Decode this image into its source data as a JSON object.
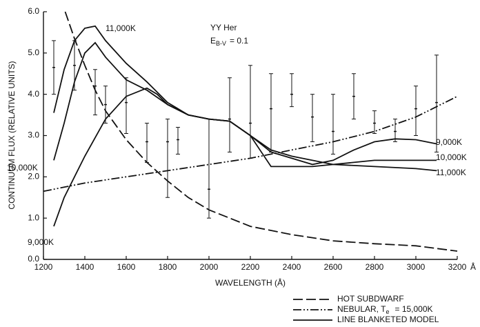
{
  "chart_data": {
    "type": "line",
    "xlabel": "WAVELENGTH (Å)",
    "ylabel": "CONTINUUM FLUX (RELATIVE UNITS)",
    "x_unit": "Å",
    "annotation_object": "YY Her",
    "annotation_excess": "E",
    "annotation_excess_subscript": "B-V",
    "annotation_excess_value": "= 0.1",
    "xlim": [
      1200,
      3200
    ],
    "ylim": [
      0,
      6
    ],
    "xticks": [
      1200,
      1400,
      1600,
      1800,
      2000,
      2200,
      2400,
      2600,
      2800,
      3000,
      3200
    ],
    "yticks": [
      {
        "value": 0,
        "label": "0.0"
      },
      {
        "value": 1,
        "label": "1.0"
      },
      {
        "value": 2,
        "label": "2.0"
      },
      {
        "value": 3,
        "label": "3.0"
      },
      {
        "value": 4,
        "label": "4.0"
      },
      {
        "value": 5,
        "label": "5.0"
      },
      {
        "value": 6,
        "label": "6.0"
      }
    ],
    "color": "#111111",
    "model_legend": "LINE BLANKETED MODEL",
    "observations": {
      "x": [
        1250,
        1350,
        1450,
        1500,
        1600,
        1700,
        1800,
        1850,
        2000,
        2100,
        2200,
        2300,
        2400,
        2500,
        2600,
        2700,
        2800,
        2900,
        3000,
        3100
      ],
      "values": [
        4.65,
        4.7,
        4.2,
        3.75,
        3.8,
        2.85,
        2.85,
        2.9,
        1.7,
        3.4,
        3.3,
        3.65,
        4.0,
        3.45,
        3.1,
        3.95,
        3.3,
        3.1,
        3.65,
        3.8
      ],
      "error_low": [
        0.65,
        0.6,
        0.7,
        0.45,
        0.75,
        0.5,
        1.35,
        0.35,
        0.7,
        0.8,
        0.85,
        1.05,
        0.3,
        0.6,
        0.55,
        0.55,
        0.25,
        0.25,
        0.65,
        1.2
      ],
      "error_high": [
        0.65,
        0.6,
        0.4,
        0.45,
        0.6,
        0.45,
        0.55,
        0.3,
        1.7,
        1.0,
        1.4,
        0.85,
        0.5,
        0.55,
        0.9,
        0.55,
        0.3,
        0.3,
        0.55,
        1.15
      ]
    },
    "series": [
      {
        "name": "HOT SUBDWARF",
        "dash": "dashed",
        "x": [
          1305,
          1350,
          1400,
          1450,
          1500,
          1600,
          1700,
          1800,
          1900,
          2000,
          2200,
          2400,
          2600,
          2800,
          3000,
          3200
        ],
        "values": [
          6.0,
          5.35,
          4.7,
          4.1,
          3.6,
          2.9,
          2.35,
          1.9,
          1.5,
          1.2,
          0.8,
          0.6,
          0.45,
          0.38,
          0.33,
          0.2
        ]
      },
      {
        "name": "NEBULAR, T",
        "name_subscript": "e",
        "name_suffix": "= 15,000K",
        "dash": "dashdot",
        "x": [
          1200,
          1400,
          1600,
          1800,
          2000,
          2200,
          2400,
          2600,
          2800,
          3000,
          3200
        ],
        "values": [
          1.65,
          1.85,
          2.0,
          2.15,
          2.3,
          2.45,
          2.65,
          2.85,
          3.1,
          3.45,
          3.95
        ]
      },
      {
        "name": "11,000K",
        "dash": "solid",
        "model": true,
        "x": [
          1250,
          1300,
          1350,
          1400,
          1450,
          1500,
          1600,
          1700,
          1800,
          1900,
          2000,
          2100,
          2200,
          2300,
          2400,
          2500,
          2600,
          2800,
          3000,
          3100
        ],
        "values": [
          3.55,
          4.6,
          5.3,
          5.6,
          5.65,
          5.3,
          4.75,
          4.3,
          3.8,
          3.5,
          3.4,
          3.35,
          3.0,
          2.65,
          2.5,
          2.4,
          2.3,
          2.25,
          2.2,
          2.15
        ]
      },
      {
        "name": "10,000K",
        "dash": "solid",
        "model": true,
        "x": [
          1250,
          1300,
          1350,
          1400,
          1450,
          1500,
          1600,
          1700,
          1800,
          1900,
          2000,
          2100,
          2200,
          2300,
          2400,
          2500,
          2600,
          2800,
          3000,
          3100
        ],
        "values": [
          2.4,
          3.3,
          4.3,
          5.0,
          5.25,
          4.9,
          4.35,
          4.1,
          3.75,
          3.5,
          3.4,
          3.35,
          3.0,
          2.25,
          2.25,
          2.25,
          2.3,
          2.4,
          2.4,
          2.4
        ]
      },
      {
        "name": "9,000K",
        "dash": "solid",
        "model": true,
        "x": [
          1250,
          1300,
          1400,
          1500,
          1600,
          1700,
          1750,
          1800,
          1900,
          2000,
          2100,
          2200,
          2300,
          2400,
          2500,
          2600,
          2700,
          2800,
          2900,
          3000,
          3100
        ],
        "values": [
          0.8,
          1.5,
          2.5,
          3.4,
          3.95,
          4.15,
          4.0,
          3.75,
          3.5,
          3.4,
          3.35,
          3.0,
          2.6,
          2.45,
          2.3,
          2.4,
          2.65,
          2.85,
          2.92,
          2.9,
          2.8
        ]
      }
    ]
  }
}
